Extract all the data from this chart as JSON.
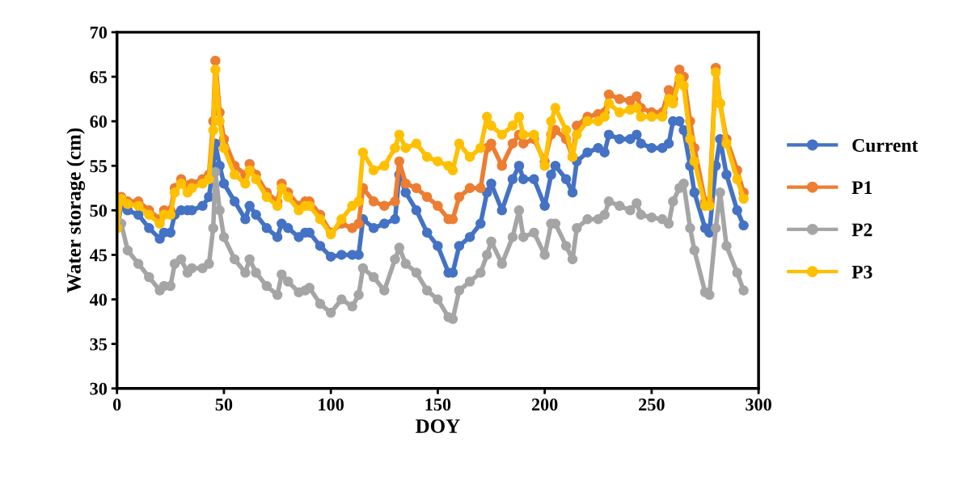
{
  "chart_data": {
    "type": "line",
    "xlabel": "DOY",
    "ylabel": "Water storage (cm)",
    "x": [
      0,
      2,
      5,
      10,
      15,
      20,
      22,
      25,
      27,
      30,
      33,
      35,
      40,
      43,
      45,
      46,
      48,
      50,
      55,
      60,
      62,
      65,
      70,
      75,
      77,
      80,
      85,
      88,
      90,
      95,
      100,
      105,
      110,
      113,
      115,
      120,
      125,
      130,
      132,
      135,
      140,
      145,
      150,
      155,
      157,
      160,
      165,
      170,
      173,
      175,
      180,
      185,
      188,
      190,
      195,
      200,
      203,
      205,
      210,
      213,
      215,
      220,
      225,
      228,
      230,
      235,
      240,
      243,
      245,
      250,
      255,
      258,
      260,
      263,
      265,
      268,
      270,
      275,
      277,
      280,
      282,
      285,
      290,
      293
    ],
    "series": [
      {
        "name": "Current",
        "color": "#4472c4",
        "values": [
          48,
          50.5,
          50,
          49.5,
          48,
          46.8,
          47.5,
          47.5,
          49.5,
          50,
          50,
          50,
          50.5,
          51.5,
          55,
          57.5,
          55,
          53,
          51,
          49,
          50.5,
          49.5,
          48,
          47,
          48.5,
          48,
          47,
          47.5,
          47.5,
          46,
          44.8,
          45,
          45,
          45,
          49,
          48,
          48.5,
          49,
          54,
          52,
          50,
          47.5,
          46,
          43,
          43,
          46,
          47,
          48.5,
          52,
          53,
          50,
          53.5,
          55,
          53.5,
          53.5,
          50.5,
          54,
          55,
          53.5,
          52,
          55.5,
          56.5,
          57,
          56.5,
          58.5,
          58,
          58,
          58.5,
          57.5,
          57,
          57,
          57.5,
          60,
          60,
          59,
          55,
          52,
          48,
          47.5,
          55,
          58,
          54,
          50,
          48.3
        ]
      },
      {
        "name": "P1",
        "color": "#ed7d31",
        "values": [
          48.2,
          51.5,
          51,
          51,
          50,
          49,
          50,
          50,
          52.5,
          53.5,
          52.8,
          53,
          53.5,
          54,
          60,
          66.8,
          61,
          58,
          55,
          54,
          55.2,
          54,
          52,
          51,
          53,
          52,
          50.5,
          51,
          51,
          49.5,
          47.5,
          48.5,
          48,
          48.5,
          52.5,
          51,
          50.5,
          51,
          55.5,
          53,
          52.5,
          51.5,
          50.5,
          49,
          49,
          51.5,
          52.5,
          52.5,
          57,
          57.5,
          55,
          57.5,
          58.5,
          57.5,
          58,
          55.5,
          58.5,
          59,
          58,
          56,
          59.5,
          60.5,
          60.8,
          61,
          63,
          62.5,
          62.3,
          62.8,
          61.5,
          61,
          61,
          63.5,
          62.5,
          65.8,
          65,
          60,
          57,
          51,
          51,
          66,
          62,
          58,
          54.5,
          52
        ]
      },
      {
        "name": "P2",
        "color": "#a5a5a5",
        "values": [
          48,
          48.5,
          45.5,
          44,
          42.5,
          41,
          41.5,
          41.5,
          44,
          44.5,
          43,
          43.5,
          43.5,
          44,
          48,
          54.3,
          50,
          47,
          44.5,
          43,
          44.5,
          43,
          41.5,
          40.5,
          42.8,
          42,
          40.8,
          41,
          41.3,
          39.5,
          38.5,
          40,
          39.2,
          40.5,
          43.5,
          42.5,
          41,
          44.5,
          45.8,
          44,
          43,
          41,
          40,
          38,
          37.8,
          41,
          42,
          43,
          45,
          46.5,
          44,
          47,
          50,
          47,
          47.5,
          45,
          48.5,
          48.5,
          46,
          44.5,
          48,
          49,
          49,
          49.5,
          51,
          50.5,
          50,
          50.8,
          49.5,
          49.2,
          49,
          48.5,
          51,
          52.5,
          53,
          48,
          45.5,
          40.8,
          40.5,
          48,
          52,
          46,
          43,
          41
        ]
      },
      {
        "name": "P3",
        "color": "#ffc000",
        "values": [
          48,
          51.3,
          50.7,
          50.5,
          49.5,
          48.5,
          49.5,
          49.5,
          52,
          53,
          52,
          52.5,
          53,
          53.5,
          59,
          65.8,
          60,
          57,
          54,
          53,
          54.5,
          53.5,
          51.5,
          50.5,
          52.5,
          51.5,
          50,
          50.5,
          50.5,
          49,
          47.3,
          49,
          50.5,
          51,
          56.5,
          54.5,
          55,
          57,
          58.5,
          57,
          57.5,
          56,
          55.5,
          55,
          54.5,
          57.5,
          56,
          57,
          60.5,
          59.5,
          58.5,
          59.5,
          60.5,
          58.5,
          58.5,
          55,
          60,
          61.5,
          59,
          56,
          58.5,
          60,
          60,
          60.5,
          62,
          61,
          61.3,
          61.5,
          60.5,
          60.5,
          60.5,
          62.5,
          62,
          64.8,
          64,
          58,
          55.5,
          50.5,
          50.5,
          65.5,
          62,
          57.5,
          53.5,
          51.3
        ]
      }
    ],
    "xlim": [
      0,
      300
    ],
    "xticks": [
      0,
      50,
      100,
      150,
      200,
      250,
      300
    ],
    "ylim": [
      30,
      70
    ],
    "yticks": [
      30,
      35,
      40,
      45,
      50,
      55,
      60,
      65,
      70
    ],
    "grid": false,
    "legend": "right",
    "marker": "circle",
    "line_style": "solid"
  }
}
